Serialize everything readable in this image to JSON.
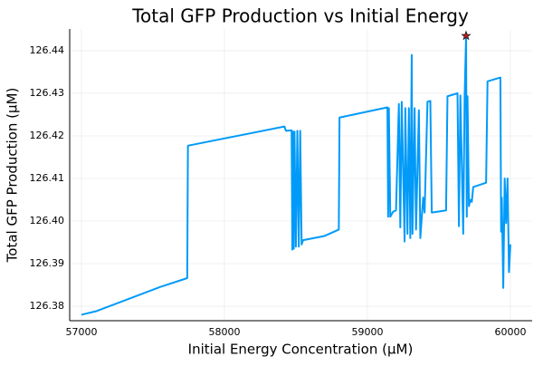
{
  "chart_data": {
    "type": "line",
    "title": "Total GFP Production vs Initial Energy",
    "xlabel": "Initial Energy Concentration (μM)",
    "ylabel": "Total GFP Production (μM)",
    "xlim": [
      56918,
      60152
    ],
    "ylim": [
      126.3766,
      126.4451
    ],
    "xticks": [
      57000,
      58000,
      59000,
      60000
    ],
    "yticks": [
      126.38,
      126.39,
      {
        "value": 126.4,
        "label": "126.40"
      },
      126.41,
      126.42,
      126.43,
      126.44
    ],
    "grid": true,
    "series": [
      {
        "color": "#009af9",
        "x": [
          57000,
          57100,
          57550,
          57740,
          57745,
          58180,
          58420,
          58430,
          58470,
          58475,
          58480,
          58485,
          58490,
          58500,
          58510,
          58520,
          58530,
          58540,
          58550,
          58700,
          58800,
          58805,
          59140,
          59145,
          59150,
          59160,
          59180,
          59200,
          59220,
          59230,
          59240,
          59260,
          59265,
          59280,
          59290,
          59300,
          59310,
          59315,
          59330,
          59340,
          59360,
          59370,
          59390,
          59400,
          59420,
          59440,
          59450,
          59550,
          59560,
          59630,
          59640,
          59650,
          59670,
          59680,
          59690,
          59695,
          59700,
          59710,
          59720,
          59730,
          59740,
          59830,
          59840,
          59930,
          59935,
          59940,
          59950,
          59960,
          59970,
          59980,
          59990,
          60000
        ],
        "values": [
          126.378,
          126.3788,
          126.3845,
          126.3866,
          126.4177,
          126.4206,
          126.4222,
          126.4212,
          126.4213,
          126.3933,
          126.421,
          126.3935,
          126.421,
          126.394,
          126.4212,
          126.394,
          126.4212,
          126.3945,
          126.3955,
          126.3965,
          126.398,
          126.4243,
          126.4267,
          126.401,
          126.4265,
          126.401,
          126.4022,
          126.4025,
          126.4275,
          126.3985,
          126.428,
          126.3952,
          126.4265,
          126.397,
          126.4265,
          126.396,
          126.439,
          126.397,
          126.4265,
          126.398,
          126.426,
          126.396,
          126.4055,
          126.402,
          126.428,
          126.4282,
          126.402,
          126.4025,
          126.4293,
          126.43,
          126.3988,
          126.4295,
          126.397,
          126.4293,
          126.4435,
          126.401,
          126.4293,
          126.4035,
          126.405,
          126.4045,
          126.408,
          126.409,
          126.4328,
          126.4337,
          126.3975,
          126.4055,
          126.3843,
          126.41,
          126.3995,
          126.41,
          126.388,
          126.3945
        ]
      }
    ],
    "max_point": {
      "x": 59690,
      "y": 126.4435,
      "color": "#b22222"
    }
  }
}
